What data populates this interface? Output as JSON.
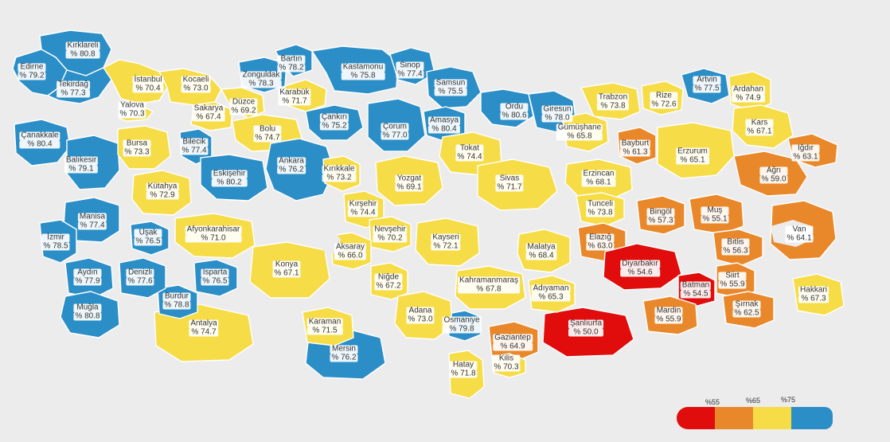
{
  "colors": {
    "blue": "#2b8ec7",
    "yellow": "#f6dc47",
    "orange": "#e9882a",
    "red": "#e10c0c"
  },
  "legend": {
    "ticks": [
      "%55",
      "%65",
      "%75"
    ]
  },
  "provinces": [
    {
      "name": "Kırklareli",
      "value": "% 80.8",
      "color": "blue"
    },
    {
      "name": "Edirne",
      "value": "% 79.2",
      "color": "blue"
    },
    {
      "name": "Tekirdağ",
      "value": "% 77.3",
      "color": "blue"
    },
    {
      "name": "İstanbul",
      "value": "% 70.4",
      "color": "yellow"
    },
    {
      "name": "Yalova",
      "value": "% 70.3",
      "color": "yellow"
    },
    {
      "name": "Kocaeli",
      "value": "% 73.0",
      "color": "yellow"
    },
    {
      "name": "Sakarya",
      "value": "% 67.4",
      "color": "yellow"
    },
    {
      "name": "Düzce",
      "value": "% 69.2",
      "color": "yellow"
    },
    {
      "name": "Zonguldak",
      "value": "% 78.3",
      "color": "blue"
    },
    {
      "name": "Bartın",
      "value": "% 78.2",
      "color": "blue"
    },
    {
      "name": "Karabük",
      "value": "% 71.7",
      "color": "yellow"
    },
    {
      "name": "Bolu",
      "value": "% 74.7",
      "color": "yellow"
    },
    {
      "name": "Kastamonu",
      "value": "% 75.8",
      "color": "blue"
    },
    {
      "name": "Sinop",
      "value": "% 77.4",
      "color": "blue"
    },
    {
      "name": "Samsun",
      "value": "% 75.5",
      "color": "blue"
    },
    {
      "name": "Çankırı",
      "value": "% 75.2",
      "color": "blue"
    },
    {
      "name": "Çorum",
      "value": "% 77.0",
      "color": "blue"
    },
    {
      "name": "Amasya",
      "value": "% 80.4",
      "color": "blue"
    },
    {
      "name": "Ordu",
      "value": "% 80.6",
      "color": "blue"
    },
    {
      "name": "Giresun",
      "value": "% 78.0",
      "color": "blue"
    },
    {
      "name": "Trabzon",
      "value": "% 73.8",
      "color": "yellow"
    },
    {
      "name": "Rize",
      "value": "% 72.6",
      "color": "yellow"
    },
    {
      "name": "Artvin",
      "value": "% 77.5",
      "color": "blue"
    },
    {
      "name": "Ardahan",
      "value": "% 74.9",
      "color": "yellow"
    },
    {
      "name": "Gümüşhane",
      "value": "% 65.8",
      "color": "yellow"
    },
    {
      "name": "Bayburt",
      "value": "% 61.3",
      "color": "orange"
    },
    {
      "name": "Kars",
      "value": "% 67.1",
      "color": "yellow"
    },
    {
      "name": "Erzurum",
      "value": "% 65.1",
      "color": "yellow"
    },
    {
      "name": "Iğdır",
      "value": "% 63.1",
      "color": "orange"
    },
    {
      "name": "Ağrı",
      "value": "% 59.0",
      "color": "orange"
    },
    {
      "name": "Çanakkale",
      "value": "% 80.4",
      "color": "blue"
    },
    {
      "name": "Balıkesir",
      "value": "% 79.1",
      "color": "blue"
    },
    {
      "name": "Bursa",
      "value": "% 73.3",
      "color": "yellow"
    },
    {
      "name": "Bilecik",
      "value": "% 77.4",
      "color": "blue"
    },
    {
      "name": "Eskişehir",
      "value": "% 80.2",
      "color": "blue"
    },
    {
      "name": "Ankara",
      "value": "% 76.2",
      "color": "blue"
    },
    {
      "name": "Kırıkkale",
      "value": "% 73.2",
      "color": "yellow"
    },
    {
      "name": "Yozgat",
      "value": "% 69.1",
      "color": "yellow"
    },
    {
      "name": "Tokat",
      "value": "% 74.4",
      "color": "yellow"
    },
    {
      "name": "Sivas",
      "value": "% 71.7",
      "color": "yellow"
    },
    {
      "name": "Erzincan",
      "value": "% 68.1",
      "color": "yellow"
    },
    {
      "name": "Tunceli",
      "value": "% 73.8",
      "color": "yellow"
    },
    {
      "name": "Bingöl",
      "value": "% 57.3",
      "color": "orange"
    },
    {
      "name": "Muş",
      "value": "% 55.1",
      "color": "orange"
    },
    {
      "name": "Van",
      "value": "% 64.1",
      "color": "orange"
    },
    {
      "name": "Bitlis",
      "value": "% 56.3",
      "color": "orange"
    },
    {
      "name": "Kütahya",
      "value": "% 72.9",
      "color": "yellow"
    },
    {
      "name": "Manisa",
      "value": "% 77.4",
      "color": "blue"
    },
    {
      "name": "İzmir",
      "value": "% 78.5",
      "color": "blue"
    },
    {
      "name": "Uşak",
      "value": "% 76.5",
      "color": "blue"
    },
    {
      "name": "Afyonkarahisar",
      "value": "% 71.0",
      "color": "yellow"
    },
    {
      "name": "Kırşehir",
      "value": "% 74.4",
      "color": "yellow"
    },
    {
      "name": "Nevşehir",
      "value": "% 70.2",
      "color": "yellow"
    },
    {
      "name": "Kayseri",
      "value": "% 72.1",
      "color": "yellow"
    },
    {
      "name": "Aksaray",
      "value": "% 66.0",
      "color": "yellow"
    },
    {
      "name": "Konya",
      "value": "% 67.1",
      "color": "yellow"
    },
    {
      "name": "Niğde",
      "value": "% 67.2",
      "color": "yellow"
    },
    {
      "name": "Malatya",
      "value": "% 68.4",
      "color": "yellow"
    },
    {
      "name": "Elazığ",
      "value": "% 63.0",
      "color": "orange"
    },
    {
      "name": "Diyarbakır",
      "value": "% 54.6",
      "color": "red"
    },
    {
      "name": "Batman",
      "value": "% 54.5",
      "color": "red"
    },
    {
      "name": "Siirt",
      "value": "% 55.9",
      "color": "orange"
    },
    {
      "name": "Hakkari",
      "value": "% 67.3",
      "color": "yellow"
    },
    {
      "name": "Şırnak",
      "value": "% 62.5",
      "color": "orange"
    },
    {
      "name": "Mardin",
      "value": "% 55.9",
      "color": "orange"
    },
    {
      "name": "Şanlıurfa",
      "value": "% 50.0",
      "color": "red"
    },
    {
      "name": "Adıyaman",
      "value": "% 65.3",
      "color": "yellow"
    },
    {
      "name": "Kahramanmaraş",
      "value": "% 67.8",
      "color": "yellow"
    },
    {
      "name": "Gaziantep",
      "value": "% 64.9",
      "color": "orange"
    },
    {
      "name": "Kilis",
      "value": "% 70.3",
      "color": "yellow"
    },
    {
      "name": "Hatay",
      "value": "% 71.8",
      "color": "yellow"
    },
    {
      "name": "Osmaniye",
      "value": "% 79.8",
      "color": "blue"
    },
    {
      "name": "Adana",
      "value": "% 73.0",
      "color": "yellow"
    },
    {
      "name": "Mersin",
      "value": "% 76.2",
      "color": "blue"
    },
    {
      "name": "Karaman",
      "value": "% 71.5",
      "color": "yellow"
    },
    {
      "name": "Antalya",
      "value": "% 74.7",
      "color": "yellow"
    },
    {
      "name": "Burdur",
      "value": "% 78.8",
      "color": "blue"
    },
    {
      "name": "Isparta",
      "value": "% 76.5",
      "color": "blue"
    },
    {
      "name": "Denizli",
      "value": "% 77.6",
      "color": "blue"
    },
    {
      "name": "Aydın",
      "value": "% 77.9",
      "color": "blue"
    },
    {
      "name": "Muğla",
      "value": "% 80.8",
      "color": "blue"
    }
  ]
}
